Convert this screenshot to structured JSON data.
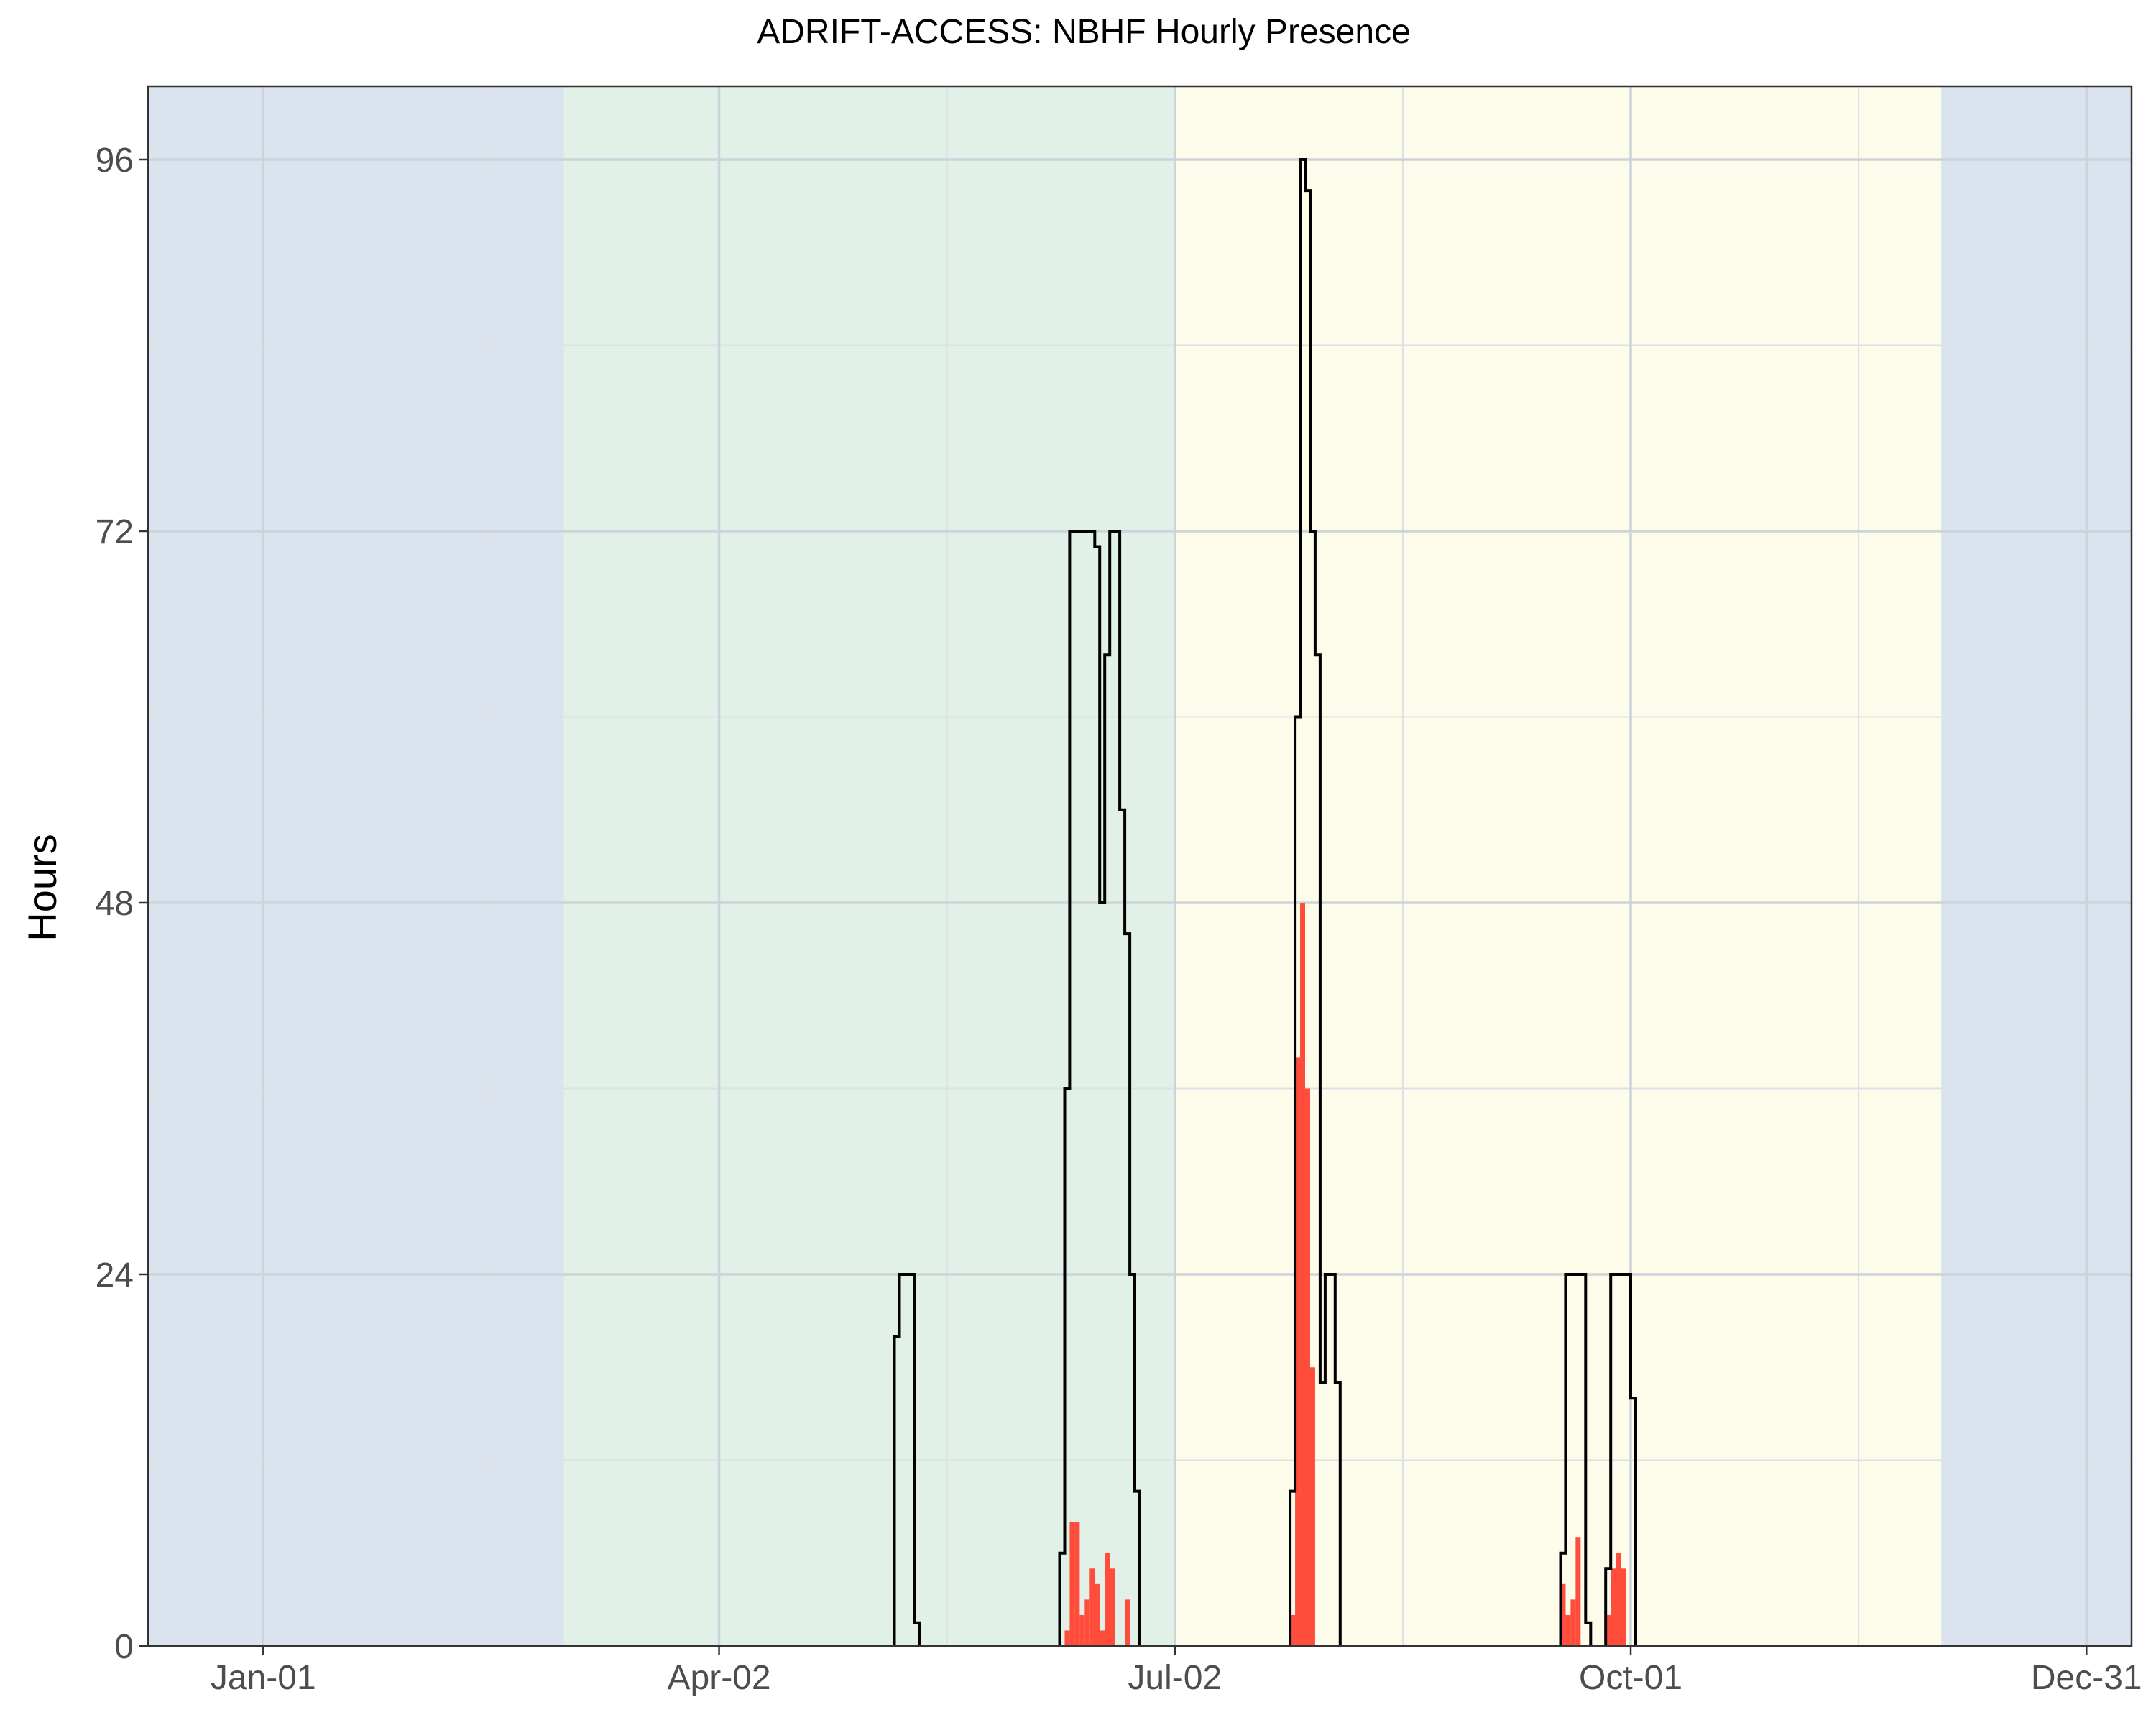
{
  "chart_data": {
    "type": "bar",
    "title": "ADRIFT-ACCESS: NBHF Hourly Presence",
    "xlabel": "",
    "ylabel": "Hours",
    "x_range": [
      -23,
      373
    ],
    "ylim": [
      0,
      96
    ],
    "grid": true,
    "x_ticks": [
      {
        "day": 0,
        "label": "Jan-01"
      },
      {
        "day": 91,
        "label": "Apr-02"
      },
      {
        "day": 182,
        "label": "Jul-02"
      },
      {
        "day": 273,
        "label": "Oct-01"
      },
      {
        "day": 364,
        "label": "Dec-31"
      }
    ],
    "x_minor_ticks": [
      45.5,
      136.5,
      227.5,
      318.5
    ],
    "y_ticks": [
      0,
      24,
      48,
      72,
      96
    ],
    "y_minor_ticks": [
      12,
      36,
      60,
      84
    ],
    "seasons": [
      {
        "start": -23,
        "end": 60,
        "color": "#dbe4ee"
      },
      {
        "start": 60,
        "end": 182,
        "color": "#e1f1e7"
      },
      {
        "start": 182,
        "end": 335,
        "color": "#fdfbea"
      },
      {
        "start": 335,
        "end": 373,
        "color": "#dbe4ee"
      }
    ],
    "series": [
      {
        "kind": "step",
        "color": "#000000",
        "x": [
          126,
          127,
          128,
          129,
          130,
          131,
          132,
          159,
          160,
          161,
          162,
          163,
          164,
          165,
          166,
          167,
          168,
          169,
          170,
          171,
          172,
          173,
          174,
          175,
          176,
          205,
          206,
          207,
          208,
          209,
          210,
          211,
          212,
          213,
          214,
          215,
          259,
          260,
          261,
          262,
          263,
          264,
          265,
          266,
          267,
          268,
          269,
          270,
          271,
          272,
          273,
          274,
          275
        ],
        "values": [
          20,
          24,
          24,
          24,
          1.5,
          0,
          0,
          6,
          36,
          72,
          72,
          72,
          72,
          72,
          71,
          48,
          64,
          72,
          72,
          54,
          46,
          24,
          10,
          0,
          0,
          10,
          60,
          96,
          94,
          72,
          64,
          17,
          24,
          24,
          17,
          0,
          6,
          24,
          24,
          24,
          24,
          1.5,
          0,
          0,
          0,
          5,
          24,
          24,
          24,
          24,
          16,
          0,
          0
        ]
      },
      {
        "kind": "bars",
        "color": "#ff4c3b",
        "x": [
          160,
          161,
          162,
          163,
          164,
          165,
          166,
          167,
          168,
          169,
          170,
          171,
          172,
          173,
          205,
          206,
          207,
          208,
          209,
          210,
          259,
          260,
          261,
          262,
          263,
          264,
          268,
          269,
          270,
          271,
          272
        ],
        "values": [
          1,
          8,
          8,
          2,
          3,
          5,
          4,
          1,
          6,
          5,
          0,
          0,
          3,
          0,
          2,
          38,
          48,
          36,
          18,
          0,
          4,
          2,
          3,
          7,
          0,
          0,
          2,
          5,
          6,
          5,
          0
        ]
      }
    ]
  }
}
